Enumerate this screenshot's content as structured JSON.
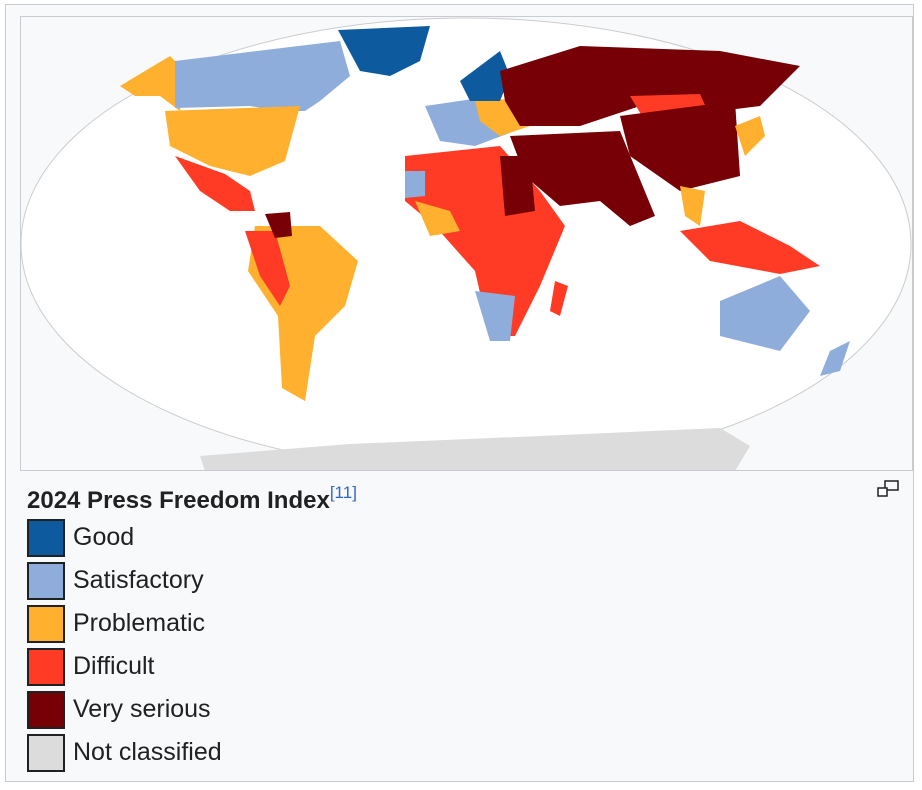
{
  "caption": {
    "title": "2024 Press Freedom Index",
    "reference": "[11]"
  },
  "legend": [
    {
      "label": "Good",
      "color": "#0d5a9e"
    },
    {
      "label": "Satisfactory",
      "color": "#8fadda"
    },
    {
      "label": "Problematic",
      "color": "#ffb02e"
    },
    {
      "label": "Difficult",
      "color": "#ff3b25"
    },
    {
      "label": "Very serious",
      "color": "#760005"
    },
    {
      "label": "Not classified",
      "color": "#dcdcdc"
    }
  ]
}
